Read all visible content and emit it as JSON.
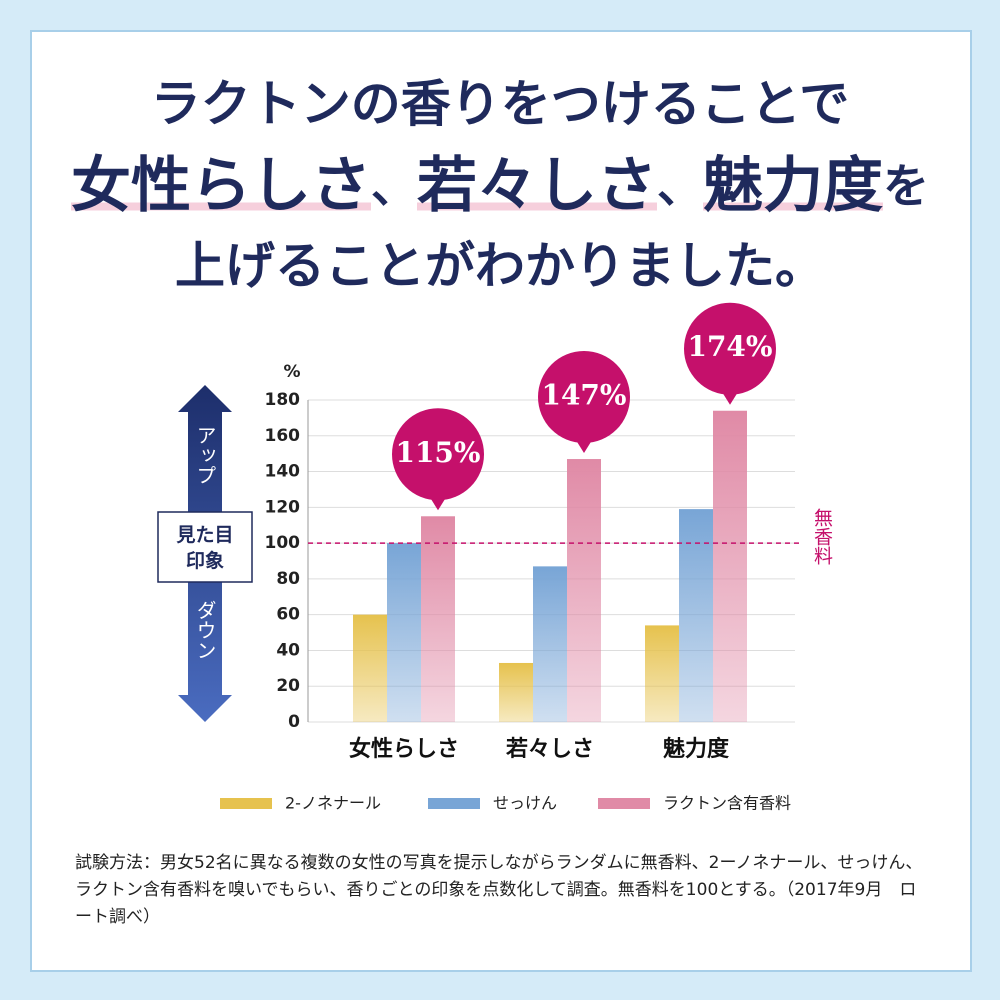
{
  "chart_data": {
    "type": "bar",
    "title_lines": [
      "ラクトンの香りをつけることで",
      [
        "女性らしさ",
        "、",
        "若々しさ",
        "、",
        "魅力度",
        "を"
      ],
      "上げることがわかりました。"
    ],
    "y_unit": "%",
    "side_labels": {
      "up": "アップ",
      "middle": "見た目\n印象",
      "down": "ダウン"
    },
    "categories": [
      "女性らしさ",
      "若々しさ",
      "魅力度"
    ],
    "series": [
      {
        "name": "2-ノネナール",
        "color": "#e6c24e",
        "values": [
          60,
          33,
          54
        ]
      },
      {
        "name": "せっけん",
        "color": "#78a5d6",
        "values": [
          100,
          87,
          119
        ]
      },
      {
        "name": "ラクトン含有香料",
        "color": "#e08aa6",
        "values": [
          115,
          147,
          174
        ],
        "value_labels": [
          "115%",
          "147%",
          "174%"
        ]
      }
    ],
    "reference": {
      "value": 100,
      "label": "無香料"
    },
    "ylim": [
      0,
      180
    ],
    "yticks": [
      0,
      20,
      40,
      60,
      80,
      100,
      120,
      140,
      160,
      180
    ],
    "grid": true,
    "footnote": "試験方法：男女52名に異なる複数の女性の写真を提示しながらランダムに無香料、2ーノネナール、せっけん、ラクトン含有香料を嗅いでもらい、香りごとの印象を点数化して調査。無香料を100とする。（2017年9月　ロート調べ）"
  }
}
